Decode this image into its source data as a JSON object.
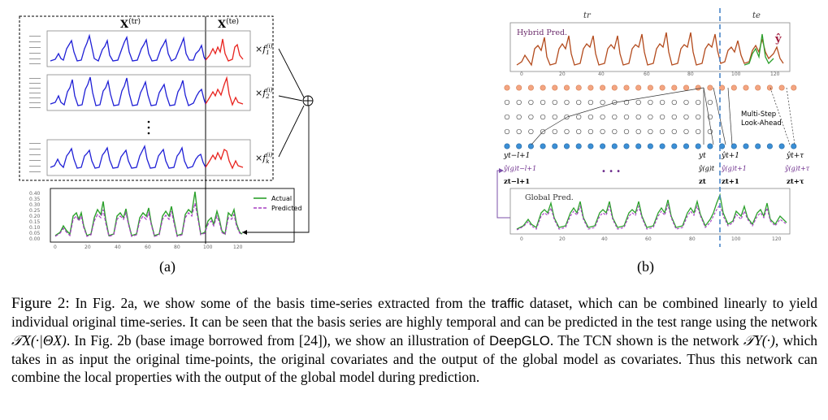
{
  "panel_a": {
    "train_label": "X",
    "train_sup": "(tr)",
    "test_label": "X",
    "test_sup": "(te)",
    "weights": [
      {
        "base": "×f",
        "sub": "1",
        "sup": "(i)"
      },
      {
        "base": "×f",
        "sub": "2",
        "sup": "(i)"
      },
      {
        "base": "×f",
        "sub": "k",
        "sup": "(i)"
      }
    ],
    "sum_symbol": "⊕",
    "x_ticks": [
      "0",
      "20",
      "40",
      "60",
      "80",
      "100",
      "120"
    ],
    "bottom_y_ticks": [
      "0.40",
      "0.35",
      "0.30",
      "0.25",
      "0.20",
      "0.15",
      "0.10",
      "0.05",
      "0.00"
    ],
    "legend": [
      {
        "label": "Actual",
        "color": "#2ca02c"
      },
      {
        "label": "Predicted",
        "color": "#a63ec2"
      }
    ],
    "colors": {
      "basis_train": "#1f1fd6",
      "basis_test": "#e8231e",
      "actual": "#2ca02c",
      "predicted": "#a63ec2"
    }
  },
  "panel_b": {
    "tr_label": "tr",
    "te_label": "te",
    "hybrid_label": "Hybrid Pred.",
    "yhat_label": "ŷ",
    "global_label": "Global Pred.",
    "multistep_label": [
      "Multi-Step",
      "Look-Ahead"
    ],
    "dots": "• • •",
    "y_labels": [
      "yt−l+1",
      "yt",
      "ŷt+1",
      "ŷt+τ"
    ],
    "yg_labels": [
      "ŷ(g)t−l+1",
      "ŷ(g)t",
      "ŷ(g)t+1",
      "ŷ(g)t+τ"
    ],
    "z_labels": [
      "zt−l+1",
      "zt",
      "zt+1",
      "zt+τ"
    ],
    "x_ticks": [
      "0",
      "20",
      "40",
      "60",
      "80",
      "100",
      "120"
    ],
    "colors": {
      "hybrid_line": "#b34a1c",
      "hybrid_green": "#2ca02c",
      "global_green": "#2ca02c",
      "global_purple": "#a63ec2",
      "node_orange": "#f4a582",
      "node_blue": "#3b8fd6",
      "divider": "#4a86c8"
    }
  },
  "subcaptions": {
    "a": "(a)",
    "b": "(b)"
  },
  "caption": {
    "figure_label": "Figure 2:",
    "t1": " In Fig. 2a, we show some of the basis time-series extracted from the ",
    "traffic": "traffic",
    "t2": " dataset, which can be combined linearly to yield individual original time-series. It can be seen that the basis series are highly temporal and can be predicted in the test range using the network ",
    "tx": "𝒯X(·|ΘX)",
    "t3": ". In Fig. 2b (base image borrowed from [24]), we show an illustration of ",
    "deepglo": "DeepGLO",
    "t4": ". The TCN shown is the network ",
    "ty": "𝒯Y(·)",
    "t5": ", which takes in as input the original time-points, the original covariates and the output of the global model as covariates. Thus this network can combine the local properties with the output of the global model during prediction."
  }
}
